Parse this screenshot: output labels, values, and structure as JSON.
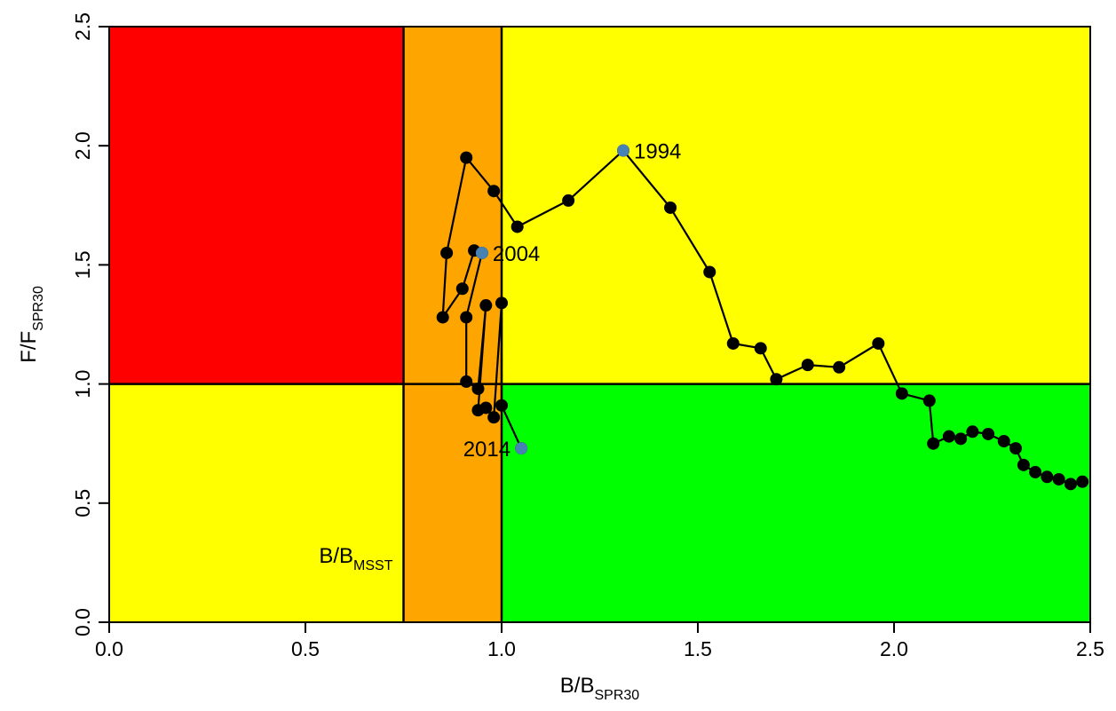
{
  "chart_data": {
    "type": "scatter",
    "xlabel": {
      "main": "B/B",
      "sub": "SPR30"
    },
    "ylabel": {
      "main": "F/F",
      "sub": "SPR30"
    },
    "xlim": [
      0,
      2.5
    ],
    "ylim": [
      0,
      2.5
    ],
    "x_ticks": [
      "0.0",
      "0.5",
      "1.0",
      "1.5",
      "2.0",
      "2.5"
    ],
    "y_ticks": [
      "0.0",
      "0.5",
      "1.0",
      "1.5",
      "2.0",
      "2.5"
    ],
    "reference_lines": {
      "b_msst": 0.75,
      "b_target": 1.0,
      "f_target": 1.0
    },
    "msst_label": {
      "main": "B/B",
      "sub": "MSST"
    },
    "zones": [
      {
        "name": "overfished-overfishing",
        "x": [
          0,
          0.75
        ],
        "y": [
          1.0,
          2.5
        ],
        "color": "#ff0000"
      },
      {
        "name": "between-msst-target-upper",
        "x": [
          0.75,
          1.0
        ],
        "y": [
          1.0,
          2.5
        ],
        "color": "#ffa500"
      },
      {
        "name": "between-msst-target-lower",
        "x": [
          0.75,
          1.0
        ],
        "y": [
          0,
          1.0
        ],
        "color": "#ffa500"
      },
      {
        "name": "overfished-not-overfishing",
        "x": [
          0,
          0.75
        ],
        "y": [
          0,
          1.0
        ],
        "color": "#ffff00"
      },
      {
        "name": "overfishing-not-overfished",
        "x": [
          1.0,
          2.5
        ],
        "y": [
          1.0,
          2.5
        ],
        "color": "#ffff00"
      },
      {
        "name": "healthy",
        "x": [
          1.0,
          2.5
        ],
        "y": [
          0,
          1.0
        ],
        "color": "#00ff00"
      }
    ],
    "line_color": "#000000",
    "point_color": "#000000",
    "highlight_color": "#4682b4",
    "points": [
      [
        2.48,
        0.59
      ],
      [
        2.45,
        0.58
      ],
      [
        2.42,
        0.6
      ],
      [
        2.39,
        0.61
      ],
      [
        2.36,
        0.63
      ],
      [
        2.33,
        0.66
      ],
      [
        2.31,
        0.73
      ],
      [
        2.28,
        0.76
      ],
      [
        2.24,
        0.79
      ],
      [
        2.2,
        0.8
      ],
      [
        2.17,
        0.77
      ],
      [
        2.14,
        0.78
      ],
      [
        2.1,
        0.75
      ],
      [
        2.09,
        0.93
      ],
      [
        2.02,
        0.96
      ],
      [
        1.96,
        1.17
      ],
      [
        1.86,
        1.07
      ],
      [
        1.78,
        1.08
      ],
      [
        1.7,
        1.02
      ],
      [
        1.66,
        1.15
      ],
      [
        1.59,
        1.17
      ],
      [
        1.53,
        1.47
      ],
      [
        1.43,
        1.74
      ],
      [
        1.31,
        1.98
      ],
      [
        1.17,
        1.77
      ],
      [
        1.04,
        1.66
      ],
      [
        0.98,
        1.81
      ],
      [
        0.91,
        1.95
      ],
      [
        0.86,
        1.55
      ],
      [
        0.85,
        1.28
      ],
      [
        0.9,
        1.4
      ],
      [
        0.93,
        1.56
      ],
      [
        0.95,
        1.55
      ],
      [
        0.91,
        1.28
      ],
      [
        0.91,
        1.01
      ],
      [
        0.94,
        0.98
      ],
      [
        0.96,
        1.33
      ],
      [
        0.94,
        0.89
      ],
      [
        0.96,
        0.9
      ],
      [
        0.98,
        0.86
      ],
      [
        1.0,
        1.34
      ],
      [
        1.0,
        0.91
      ],
      [
        1.05,
        0.73
      ]
    ],
    "highlights": [
      {
        "label": "1994",
        "x": 1.31,
        "y": 1.98,
        "label_side": "right"
      },
      {
        "label": "2004",
        "x": 0.95,
        "y": 1.55,
        "label_side": "right"
      },
      {
        "label": "2014",
        "x": 1.05,
        "y": 0.73,
        "label_side": "left"
      }
    ]
  }
}
